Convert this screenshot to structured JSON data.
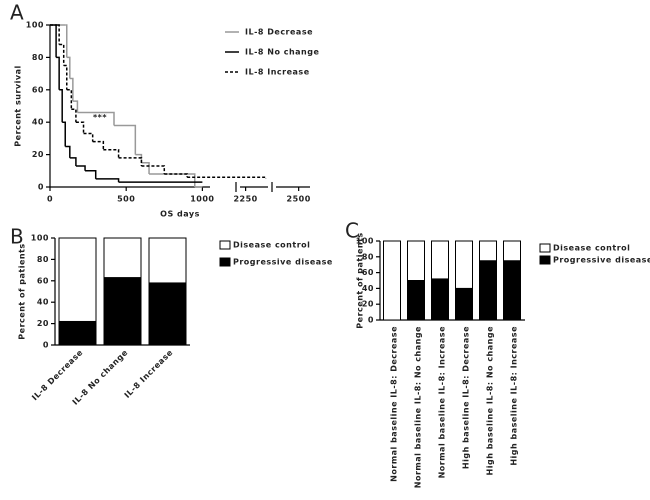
{
  "chart_data": [
    {
      "type": "line",
      "panel_label": "A",
      "ylabel": "Percent survival",
      "xlabel": "OS days",
      "annotation": "***",
      "xlim": [
        0,
        2550
      ],
      "xsegments": [
        [
          0,
          1050
        ],
        [
          2225,
          2350
        ],
        [
          2400,
          2550
        ]
      ],
      "xticks": [
        0,
        500,
        1000,
        2250,
        2500
      ],
      "ylim": [
        0,
        100
      ],
      "yticks": [
        0,
        20,
        40,
        60,
        80,
        100
      ],
      "step": true,
      "series": [
        {
          "name": "IL-8 Decrease",
          "color": "#999999",
          "dash": false,
          "x": [
            0,
            100,
            110,
            130,
            150,
            180,
            420,
            560,
            600,
            650,
            950,
            1000
          ],
          "values": [
            100,
            100,
            80,
            67,
            53,
            46,
            38,
            20,
            15,
            8,
            0,
            0
          ]
        },
        {
          "name": "IL-8 No change",
          "color": "#000000",
          "dash": false,
          "x": [
            0,
            20,
            40,
            60,
            80,
            100,
            130,
            170,
            230,
            300,
            450,
            1000
          ],
          "values": [
            100,
            100,
            80,
            60,
            40,
            25,
            18,
            13,
            10,
            5,
            3,
            3
          ]
        },
        {
          "name": "IL-8 Increase",
          "color": "#000000",
          "dash": true,
          "x": [
            0,
            50,
            60,
            90,
            110,
            140,
            170,
            220,
            280,
            350,
            450,
            600,
            750,
            900,
            2340
          ],
          "values": [
            100,
            100,
            88,
            75,
            60,
            48,
            40,
            33,
            28,
            23,
            18,
            13,
            8,
            6,
            5
          ]
        }
      ]
    },
    {
      "type": "bar",
      "panel_label": "B",
      "ylabel": "Percent of patients",
      "stacked": true,
      "categories": [
        "IL-8 Decrease",
        "IL-8 No change",
        "IL-8 Increase"
      ],
      "ylim": [
        0,
        100
      ],
      "yticks": [
        0,
        20,
        40,
        60,
        80,
        100
      ],
      "series": [
        {
          "name": "Disease control",
          "color": "#ffffff",
          "values": [
            78,
            37,
            42
          ]
        },
        {
          "name": "Progressive disease",
          "color": "#000000",
          "values": [
            22,
            63,
            58
          ]
        }
      ]
    },
    {
      "type": "bar",
      "panel_label": "C",
      "ylabel": "Percent of patients",
      "stacked": true,
      "categories": [
        "Normal baseline IL-8: Decrease",
        "Normal baseline IL-8: No change",
        "Normal baseline IL-8: Increase",
        "High baseline IL-8: Decrease",
        "High baseline IL-8: No change",
        "High baseline IL-8: Increase"
      ],
      "ylim": [
        0,
        100
      ],
      "yticks": [
        0,
        20,
        40,
        60,
        80,
        100
      ],
      "series": [
        {
          "name": "Disease control",
          "color": "#ffffff",
          "values": [
            100,
            50,
            48,
            60,
            25,
            25
          ]
        },
        {
          "name": "Progressive disease",
          "color": "#000000",
          "values": [
            0,
            50,
            52,
            40,
            75,
            75
          ]
        }
      ]
    }
  ]
}
